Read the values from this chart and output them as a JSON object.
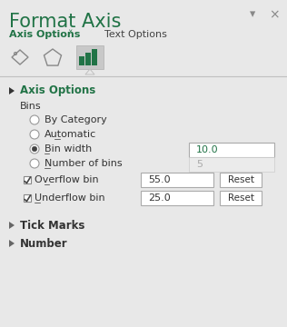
{
  "bg_color": "#e8e8e8",
  "title": "Format Axis",
  "title_color": "#217346",
  "title_fontsize": 15,
  "tab1": "Axis Options",
  "tab1_color": "#217346",
  "tab2": "Text Options",
  "tab2_color": "#444444",
  "axis_options_label": "Axis Options",
  "axis_options_color": "#217346",
  "bins_label": "Bins",
  "radio_options": [
    "By Category",
    "Automatic",
    "Bin width",
    "Number of bins"
  ],
  "radio_selected": 2,
  "bin_width_value": "10.0",
  "bin_width_color": "#217346",
  "num_bins_value": "5",
  "num_bins_color": "#aaaaaa",
  "overflow_label": "Overflow bin",
  "overflow_value": "55.0",
  "underflow_label": "Underflow bin",
  "underflow_value": "25.0",
  "reset_label": "Reset",
  "section2": "Tick Marks",
  "section3": "Number",
  "input_bg": "#ffffff",
  "separator_color": "#c0c0c0",
  "icon_bg": "#c8c8c8"
}
